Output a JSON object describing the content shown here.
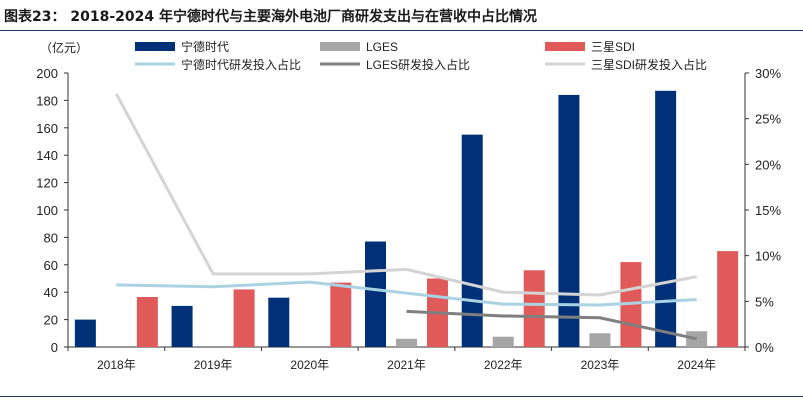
{
  "title": "图表23： 2018-2024 年宁德时代与主要海外电池厂商研发支出与在营收中占比情况",
  "chart_data": {
    "type": "bar",
    "title": "图表23： 2018-2024 年宁德时代与主要海外电池厂商研发支出与在营收中占比情况",
    "ylabel": "（亿元）",
    "categories": [
      "2018年",
      "2019年",
      "2020年",
      "2021年",
      "2022年",
      "2023年",
      "2024年"
    ],
    "ylim": [
      0,
      200
    ],
    "yticks": [
      0,
      20,
      40,
      60,
      80,
      100,
      120,
      140,
      160,
      180,
      200
    ],
    "y2lim": [
      0,
      30
    ],
    "y2ticks": [
      "0%",
      "5%",
      "10%",
      "15%",
      "20%",
      "25%",
      "30%"
    ],
    "legend_position": "top",
    "grid": false,
    "series": [
      {
        "name": "宁德时代",
        "type": "bar",
        "axis": "left",
        "color": "#003178",
        "values": [
          20,
          30,
          36,
          77,
          155,
          184,
          187
        ]
      },
      {
        "name": "LGES",
        "type": "bar",
        "axis": "left",
        "color": "#a6a6a6",
        "values": [
          null,
          null,
          null,
          6,
          7.5,
          10,
          11.5
        ]
      },
      {
        "name": "三星SDI",
        "type": "bar",
        "axis": "left",
        "color": "#e05a5a",
        "values": [
          36.5,
          42,
          47,
          50,
          56,
          62,
          70
        ]
      },
      {
        "name": "宁德时代研发投入占比",
        "type": "line",
        "axis": "right",
        "color": "#a9d3e3",
        "values": [
          6.8,
          6.6,
          7.1,
          5.9,
          4.7,
          4.6,
          5.2
        ]
      },
      {
        "name": "LGES研发投入占比",
        "type": "line",
        "axis": "right",
        "color": "#7f7f7f",
        "values": [
          null,
          null,
          null,
          3.9,
          3.4,
          3.2,
          0.9
        ]
      },
      {
        "name": "三星SDI研发投入占比",
        "type": "line",
        "axis": "right",
        "color": "#d4d4d4",
        "values": [
          27.7,
          8.0,
          8.0,
          8.5,
          6.0,
          5.7,
          7.7
        ]
      }
    ]
  }
}
